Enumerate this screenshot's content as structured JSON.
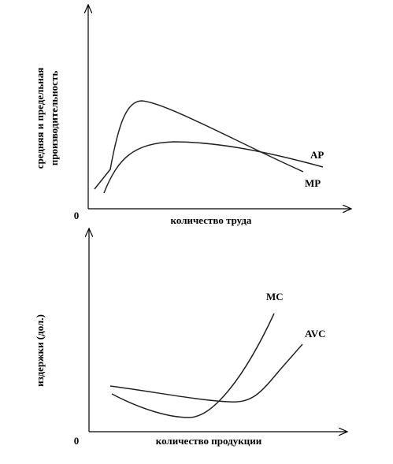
{
  "top_chart": {
    "y_label_lines": [
      "средняя и предельная",
      "производительность"
    ],
    "origin": "0",
    "x_label": "количество труда",
    "curve_labels": [
      "AP",
      "MP"
    ]
  },
  "bottom_chart": {
    "y_label": "издержки (дол.)",
    "origin": "0",
    "x_label": "количество продукции",
    "curve_labels": [
      "MC",
      "AVC"
    ]
  }
}
